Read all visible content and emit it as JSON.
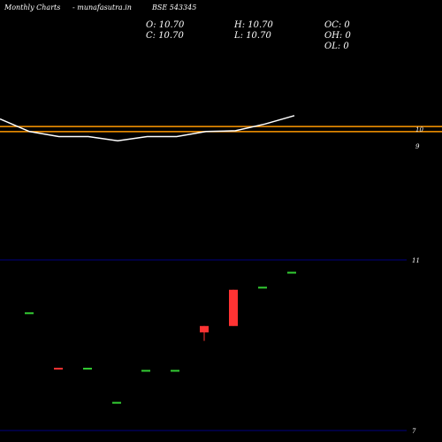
{
  "header": {
    "brand": "Monthly Charts",
    "site": "- munafasutra.in",
    "symbol": "BSE 543345",
    "open": "O: 10.70",
    "close": "C: 10.70",
    "high": "H: 10.70",
    "low": "L: 10.70",
    "oc": "OC: 0",
    "oh": "OH: 0",
    "ol": "OL: 0"
  },
  "chart_data": [
    {
      "type": "line",
      "panel": "price",
      "y_ticks": [
        "10",
        "9"
      ],
      "y_tick_values": [
        10,
        9
      ],
      "levels": [
        10.15,
        9.85
      ],
      "level_color": "#ff9900",
      "line_color": "#ffffff",
      "line_values": [
        10.6,
        9.85,
        9.55,
        9.55,
        9.3,
        9.55,
        9.55,
        9.85,
        9.9,
        10.3,
        10.8
      ],
      "line_x": [
        0,
        1,
        2,
        3,
        4,
        5,
        6,
        7,
        8,
        9,
        10
      ]
    },
    {
      "type": "bar",
      "panel": "candles",
      "y_ticks": [
        "11",
        "7"
      ],
      "y_tick_values": [
        11,
        7
      ],
      "grid_color": "#000080",
      "candles": [
        {
          "x": 1,
          "open": 9.75,
          "close": 9.75,
          "high": 9.75,
          "low": 9.75,
          "color": "#33cc33"
        },
        {
          "x": 2,
          "open": 8.45,
          "close": 8.45,
          "high": 8.45,
          "low": 8.45,
          "color": "#ff3333"
        },
        {
          "x": 3,
          "open": 8.45,
          "close": 8.45,
          "high": 8.45,
          "low": 8.45,
          "color": "#33cc33"
        },
        {
          "x": 4,
          "open": 7.65,
          "close": 7.65,
          "high": 7.65,
          "low": 7.65,
          "color": "#33cc33"
        },
        {
          "x": 5,
          "open": 8.4,
          "close": 8.4,
          "high": 8.4,
          "low": 8.4,
          "color": "#33cc33"
        },
        {
          "x": 6,
          "open": 8.4,
          "close": 8.4,
          "high": 8.4,
          "low": 8.4,
          "color": "#33cc33"
        },
        {
          "x": 7,
          "open": 9.45,
          "close": 9.3,
          "high": 9.45,
          "low": 9.1,
          "color": "#ff3333"
        },
        {
          "x": 8,
          "open": 10.3,
          "close": 9.45,
          "high": 10.3,
          "low": 9.45,
          "color": "#ff3333"
        },
        {
          "x": 9,
          "open": 10.35,
          "close": 10.35,
          "high": 10.35,
          "low": 10.35,
          "color": "#33cc33"
        },
        {
          "x": 10,
          "open": 10.7,
          "close": 10.7,
          "high": 10.7,
          "low": 10.7,
          "color": "#33cc33"
        }
      ]
    }
  ]
}
